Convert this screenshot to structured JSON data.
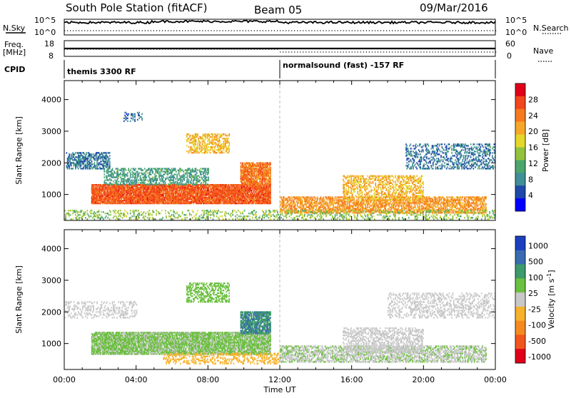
{
  "header": {
    "station": "South Pole Station (fitACF)",
    "beam": "Beam 05",
    "date": "09/Mar/2016"
  },
  "top_panels": {
    "nsky_label": "N.Sky",
    "nsearch_label": "N.Search",
    "noise_ticks_left": [
      "10^5",
      "10^0"
    ],
    "noise_ticks_right": [
      "10^5",
      "10^0"
    ],
    "freq_label_1": "Freq.",
    "freq_label_2": "[MHz]",
    "freq_ticks": [
      "18",
      "8"
    ],
    "nave_label": "Nave",
    "nave_ticks": [
      "60",
      "0"
    ],
    "cpid_label": "CPID",
    "cpid_segments": [
      {
        "label": "themis 3300 RF",
        "start_hour": 0
      },
      {
        "label": "normalsound (fast) -157 RF",
        "start_hour": 12
      }
    ]
  },
  "chart_data": [
    {
      "type": "heatmap",
      "title": "",
      "xlabel": "Time UT",
      "ylabel": "Slant Range [km]",
      "xlim": [
        0,
        24
      ],
      "ylim": [
        180,
        4600
      ],
      "x_ticks": [
        "00:00",
        "04:00",
        "08:00",
        "12:00",
        "16:00",
        "20:00",
        "00:00"
      ],
      "y_ticks": [
        1000,
        2000,
        3000,
        4000
      ],
      "colorbar": {
        "label": "Power [dB]",
        "ticks": [
          "4",
          "8",
          "12",
          "16",
          "20",
          "24",
          "28"
        ],
        "colors": [
          "#0000ff",
          "#1f49a8",
          "#3f8f96",
          "#4aa66d",
          "#93c23c",
          "#e3d829",
          "#f6a72a",
          "#f57a20",
          "#f2461c",
          "#e0001a"
        ],
        "range": [
          0,
          32
        ]
      },
      "cells_stride": 24,
      "cells": []
    },
    {
      "type": "heatmap",
      "title": "",
      "xlabel": "Time UT",
      "ylabel": "Slant Range [km]",
      "xlim": [
        0,
        24
      ],
      "ylim": [
        180,
        4600
      ],
      "x_ticks": [
        "00:00",
        "04:00",
        "08:00",
        "12:00",
        "16:00",
        "20:00",
        "00:00"
      ],
      "y_ticks": [
        1000,
        2000,
        3000,
        4000
      ],
      "colorbar": {
        "label": "Velocity [m s^-1]",
        "ticks": [
          "1000",
          "500",
          "100",
          "25",
          "-25",
          "-100",
          "-500",
          "-1000"
        ],
        "colors": [
          "#1a3fbf",
          "#3a6ab0",
          "#3d9a6b",
          "#6cc040",
          "#c8c8c8",
          "#f6b22a",
          "#f58a20",
          "#f2561c",
          "#e0001a"
        ],
        "range": [
          -1200,
          1200
        ]
      },
      "cells_stride": 24,
      "cells": []
    }
  ]
}
